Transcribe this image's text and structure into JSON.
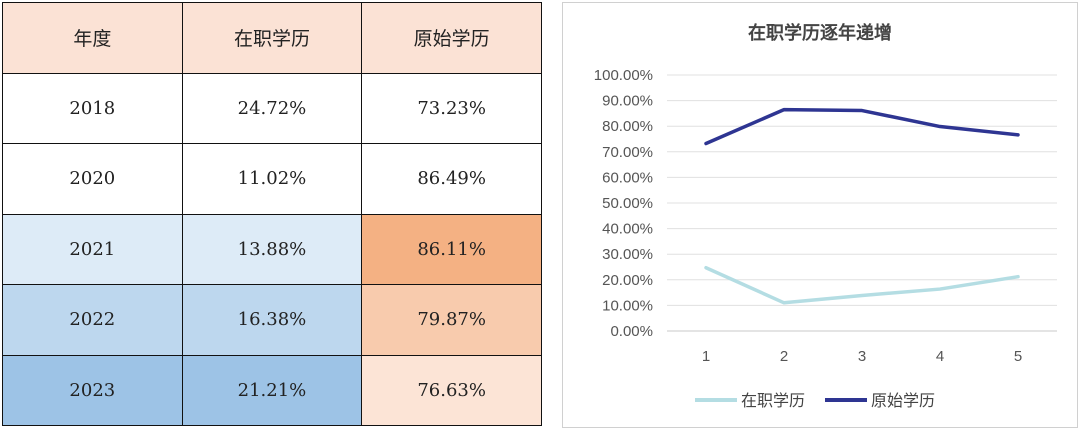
{
  "table": {
    "headers": [
      "年度",
      "在职学历",
      "原始学历"
    ],
    "rows": [
      {
        "year": "2018",
        "onjob": "24.72%",
        "original": "73.23%"
      },
      {
        "year": "2020",
        "onjob": "11.02%",
        "original": "86.49%"
      },
      {
        "year": "2021",
        "onjob": "13.88%",
        "original": "86.11%"
      },
      {
        "year": "2022",
        "onjob": "16.38%",
        "original": "79.87%"
      },
      {
        "year": "2023",
        "onjob": "21.21%",
        "original": "76.63%"
      }
    ]
  },
  "chart_data": {
    "type": "line",
    "title": "在职学历逐年递增",
    "x": [
      "1",
      "2",
      "3",
      "4",
      "5"
    ],
    "ylim": [
      0,
      100
    ],
    "yticks": [
      "0.00%",
      "10.00%",
      "20.00%",
      "30.00%",
      "40.00%",
      "50.00%",
      "60.00%",
      "70.00%",
      "80.00%",
      "90.00%",
      "100.00%"
    ],
    "grid": true,
    "legend_position": "bottom",
    "series": [
      {
        "name": "在职学历",
        "color": "#b4dde3",
        "values": [
          24.72,
          11.02,
          13.88,
          16.38,
          21.21
        ]
      },
      {
        "name": "原始学历",
        "color": "#2e3592",
        "values": [
          73.23,
          86.49,
          86.11,
          79.87,
          76.63
        ]
      }
    ]
  }
}
